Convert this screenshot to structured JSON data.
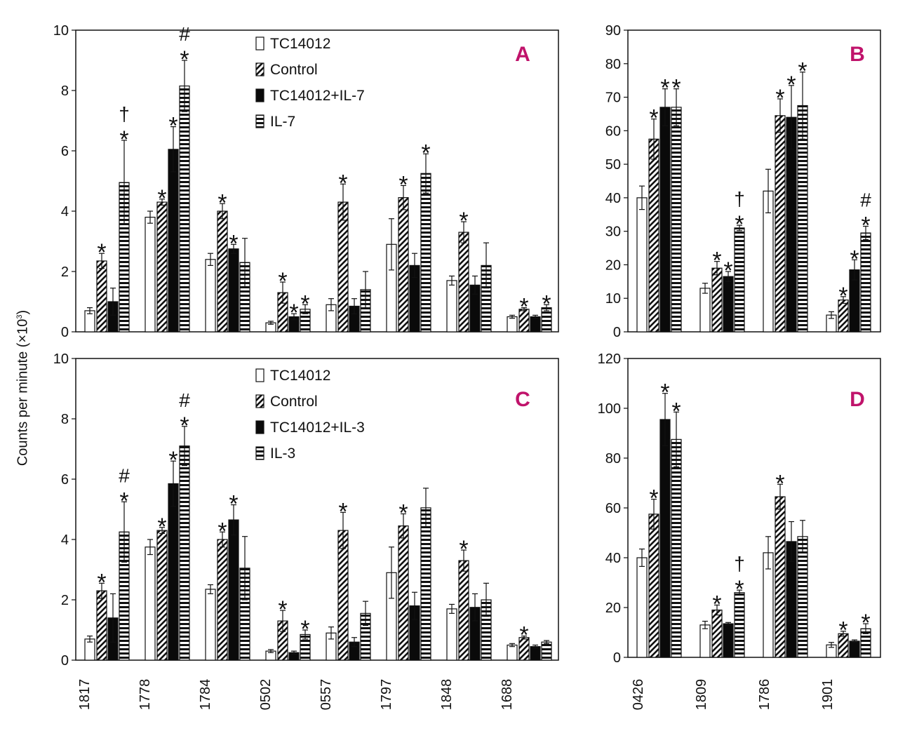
{
  "ylabel": {
    "text": "Counts per minute (×10",
    "exp": "3",
    "close": ")"
  },
  "series_colors": {
    "TC14012": "#ffffff",
    "Control": "#ffffff",
    "combo": "#0a0a0a",
    "cytokine": "#ffffff"
  },
  "panel_color": "#c0136b",
  "chart_data": [
    {
      "panel": "A",
      "type": "bar",
      "ylim": [
        0,
        10
      ],
      "yticks": [
        0,
        2,
        4,
        6,
        8,
        10
      ],
      "categories": [
        "1817",
        "1778",
        "1784",
        "0502",
        "0557",
        "1797",
        "1848",
        "1688"
      ],
      "series": [
        {
          "name": "TC14012",
          "values": [
            0.7,
            3.8,
            2.4,
            0.3,
            0.9,
            2.9,
            1.7,
            0.5
          ],
          "errors": [
            0.1,
            0.2,
            0.2,
            0.05,
            0.2,
            0.85,
            0.15,
            0.05
          ]
        },
        {
          "name": "Control",
          "values": [
            2.35,
            4.3,
            4.0,
            1.3,
            4.3,
            4.45,
            3.3,
            0.75
          ],
          "errors": [
            0.25,
            0.1,
            0.25,
            0.35,
            0.6,
            0.4,
            0.35,
            0.05
          ]
        },
        {
          "name": "TC14012+IL-7",
          "values": [
            1.0,
            6.05,
            2.75,
            0.5,
            0.85,
            2.2,
            1.55,
            0.5
          ],
          "errors": [
            0.45,
            0.75,
            0.15,
            0.1,
            0.25,
            0.4,
            0.3,
            0.05
          ]
        },
        {
          "name": "IL-7",
          "values": [
            4.95,
            8.15,
            2.3,
            0.75,
            1.4,
            5.25,
            2.2,
            0.8
          ],
          "errors": [
            1.4,
            0.85,
            0.8,
            0.15,
            0.6,
            0.65,
            0.75,
            0.1
          ]
        }
      ],
      "annotations": [
        [
          [
            "",
            "*",
            "",
            "*†"
          ],
          [
            "",
            "*",
            "*",
            "*#"
          ],
          [
            "",
            "*",
            "*",
            ""
          ],
          [
            "",
            "*",
            "*",
            "*"
          ],
          [
            "",
            "*",
            "",
            ""
          ],
          [
            "",
            "*",
            "",
            "*"
          ],
          [
            "",
            "*",
            "",
            ""
          ],
          [
            "",
            "*",
            "",
            "*"
          ]
        ]
      ]
    },
    {
      "panel": "B",
      "type": "bar",
      "ylim": [
        0,
        90
      ],
      "yticks": [
        0,
        10,
        20,
        30,
        40,
        50,
        60,
        70,
        80,
        90
      ],
      "categories": [
        "0426",
        "1809",
        "1786",
        "1901"
      ],
      "series": [
        {
          "name": "TC14012",
          "values": [
            40,
            13,
            42,
            5
          ],
          "errors": [
            3.5,
            1.5,
            6.5,
            1
          ]
        },
        {
          "name": "Control",
          "values": [
            57.5,
            19,
            64.5,
            9.5
          ],
          "errors": [
            6,
            2,
            5,
            1
          ]
        },
        {
          "name": "TC14012+IL-7",
          "values": [
            67,
            16.5,
            64,
            18.5
          ],
          "errors": [
            5.5,
            1.5,
            9.5,
            3
          ]
        },
        {
          "name": "IL-7",
          "values": [
            67,
            31,
            67.5,
            29.5
          ],
          "errors": [
            5.5,
            0.8,
            10,
            2
          ]
        }
      ],
      "annotations": [
        [
          [
            "",
            "*",
            "*",
            "*"
          ],
          [
            "",
            "*",
            "*",
            "*†"
          ],
          [
            "",
            "*",
            "*",
            "*"
          ],
          [
            "",
            "*",
            "*",
            "*#"
          ]
        ]
      ]
    },
    {
      "panel": "C",
      "type": "bar",
      "ylim": [
        0,
        10
      ],
      "yticks": [
        0,
        2,
        4,
        6,
        8,
        10
      ],
      "categories": [
        "1817",
        "1778",
        "1784",
        "0502",
        "0557",
        "1797",
        "1848",
        "1688"
      ],
      "series": [
        {
          "name": "TC14012",
          "values": [
            0.7,
            3.75,
            2.35,
            0.3,
            0.9,
            2.9,
            1.7,
            0.5
          ],
          "errors": [
            0.1,
            0.25,
            0.15,
            0.05,
            0.2,
            0.85,
            0.15,
            0.05
          ]
        },
        {
          "name": "Control",
          "values": [
            2.3,
            4.3,
            4.0,
            1.3,
            4.3,
            4.45,
            3.3,
            0.75
          ],
          "errors": [
            0.25,
            0.1,
            0.25,
            0.35,
            0.6,
            0.4,
            0.35,
            0.05
          ]
        },
        {
          "name": "TC14012+IL-3",
          "values": [
            1.4,
            5.85,
            4.65,
            0.25,
            0.6,
            1.8,
            1.75,
            0.45
          ],
          "errors": [
            0.8,
            0.75,
            0.5,
            0.05,
            0.15,
            0.45,
            0.45,
            0.05
          ]
        },
        {
          "name": "IL-3",
          "values": [
            4.25,
            7.1,
            3.05,
            0.85,
            1.55,
            5.05,
            2.0,
            0.6
          ],
          "errors": [
            1.0,
            0.65,
            1.05,
            0.15,
            0.4,
            0.65,
            0.55,
            0.05
          ]
        }
      ],
      "annotations": [
        [
          [
            "",
            "*",
            "",
            "*#"
          ],
          [
            "",
            "*",
            "*",
            "*#"
          ],
          [
            "",
            "*",
            "*",
            ""
          ],
          [
            "",
            "*",
            "",
            "*"
          ],
          [
            "",
            "*",
            "",
            ""
          ],
          [
            "",
            "*",
            "",
            ""
          ],
          [
            "",
            "*",
            "",
            ""
          ],
          [
            "",
            "*",
            "",
            ""
          ]
        ]
      ]
    },
    {
      "panel": "D",
      "type": "bar",
      "ylim": [
        0,
        120
      ],
      "yticks": [
        0,
        20,
        40,
        60,
        80,
        100,
        120
      ],
      "categories": [
        "0426",
        "1809",
        "1786",
        "1901"
      ],
      "series": [
        {
          "name": "TC14012",
          "values": [
            40,
            13,
            42,
            5
          ],
          "errors": [
            3.5,
            1.5,
            6.5,
            1
          ]
        },
        {
          "name": "Control",
          "values": [
            57.5,
            19,
            64.5,
            9.5
          ],
          "errors": [
            6,
            2,
            5,
            1
          ]
        },
        {
          "name": "TC14012+IL-3",
          "values": [
            95.5,
            13.5,
            46.5,
            6.5
          ],
          "errors": [
            10.5,
            0.5,
            8,
            0.5
          ]
        },
        {
          "name": "IL-3",
          "values": [
            87.5,
            26,
            48.5,
            11.5
          ],
          "errors": [
            11,
            1,
            6.5,
            2
          ]
        }
      ],
      "annotations": [
        [
          [
            "",
            "*",
            "*",
            "*"
          ],
          [
            "",
            "*",
            "",
            "*†"
          ],
          [
            "",
            "*",
            "",
            ""
          ],
          [
            "",
            "*",
            "",
            "*"
          ]
        ]
      ]
    }
  ]
}
